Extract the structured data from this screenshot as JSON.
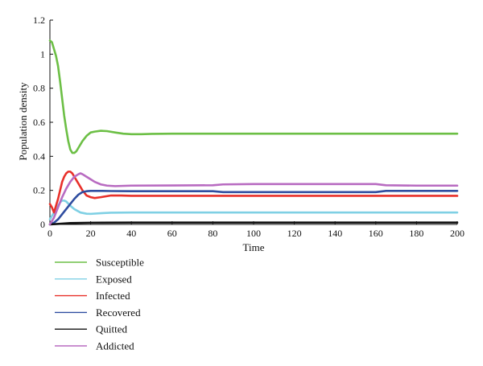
{
  "chart_data": {
    "type": "line",
    "title": "",
    "xlabel": "Time",
    "ylabel": "Population density",
    "xlim": [
      0,
      200
    ],
    "ylim": [
      0,
      1.2
    ],
    "x_ticks": [
      0,
      20,
      40,
      60,
      80,
      100,
      120,
      140,
      160,
      180,
      200
    ],
    "y_ticks": [
      0,
      0.2,
      0.4,
      0.6,
      0.8,
      1,
      1.2
    ],
    "x_tick_labels": [
      "0",
      "20",
      "40",
      "60",
      "80",
      "100",
      "120",
      "140",
      "160",
      "180",
      "200"
    ],
    "y_tick_labels": [
      "0",
      "0.2",
      "0.4",
      "0.6",
      "0.8",
      "1",
      "1.2"
    ],
    "grid": false,
    "legend_position": "bottom-left",
    "series": [
      {
        "name": "Susceptible",
        "color": "#6cbf45",
        "points": [
          [
            0,
            1.08
          ],
          [
            1,
            1.07
          ],
          [
            2,
            1.03
          ],
          [
            3,
            0.99
          ],
          [
            4,
            0.93
          ],
          [
            5,
            0.84
          ],
          [
            6,
            0.74
          ],
          [
            7,
            0.64
          ],
          [
            8,
            0.56
          ],
          [
            9,
            0.49
          ],
          [
            10,
            0.44
          ],
          [
            11,
            0.42
          ],
          [
            12,
            0.42
          ],
          [
            13,
            0.43
          ],
          [
            14,
            0.45
          ],
          [
            16,
            0.49
          ],
          [
            18,
            0.52
          ],
          [
            20,
            0.54
          ],
          [
            22,
            0.545
          ],
          [
            25,
            0.55
          ],
          [
            28,
            0.548
          ],
          [
            32,
            0.54
          ],
          [
            36,
            0.533
          ],
          [
            40,
            0.53
          ],
          [
            45,
            0.53
          ],
          [
            50,
            0.532
          ],
          [
            60,
            0.533
          ],
          [
            80,
            0.533
          ],
          [
            100,
            0.533
          ],
          [
            120,
            0.533
          ],
          [
            140,
            0.533
          ],
          [
            160,
            0.533
          ],
          [
            180,
            0.533
          ],
          [
            200,
            0.533
          ]
        ]
      },
      {
        "name": "Exposed",
        "color": "#7fd0e4",
        "points": [
          [
            0,
            0.03
          ],
          [
            2,
            0.07
          ],
          [
            4,
            0.11
          ],
          [
            5,
            0.13
          ],
          [
            6,
            0.14
          ],
          [
            7,
            0.14
          ],
          [
            8,
            0.135
          ],
          [
            10,
            0.11
          ],
          [
            12,
            0.09
          ],
          [
            15,
            0.07
          ],
          [
            18,
            0.063
          ],
          [
            20,
            0.062
          ],
          [
            25,
            0.066
          ],
          [
            30,
            0.069
          ],
          [
            40,
            0.07
          ],
          [
            60,
            0.07
          ],
          [
            80,
            0.07
          ],
          [
            100,
            0.07
          ],
          [
            120,
            0.07
          ],
          [
            140,
            0.07
          ],
          [
            160,
            0.07
          ],
          [
            180,
            0.07
          ],
          [
            200,
            0.07
          ]
        ]
      },
      {
        "name": "Infected",
        "color": "#e8302a",
        "points": [
          [
            0,
            0.12
          ],
          [
            1,
            0.1
          ],
          [
            2,
            0.07
          ],
          [
            3,
            0.11
          ],
          [
            4,
            0.15
          ],
          [
            5,
            0.2
          ],
          [
            6,
            0.25
          ],
          [
            7,
            0.28
          ],
          [
            8,
            0.3
          ],
          [
            9,
            0.31
          ],
          [
            10,
            0.31
          ],
          [
            11,
            0.3
          ],
          [
            12,
            0.28
          ],
          [
            14,
            0.24
          ],
          [
            16,
            0.2
          ],
          [
            18,
            0.17
          ],
          [
            20,
            0.16
          ],
          [
            22,
            0.155
          ],
          [
            25,
            0.16
          ],
          [
            30,
            0.17
          ],
          [
            35,
            0.17
          ],
          [
            40,
            0.168
          ],
          [
            60,
            0.168
          ],
          [
            80,
            0.168
          ],
          [
            100,
            0.168
          ],
          [
            120,
            0.168
          ],
          [
            140,
            0.168
          ],
          [
            160,
            0.168
          ],
          [
            180,
            0.168
          ],
          [
            200,
            0.168
          ]
        ]
      },
      {
        "name": "Recovered",
        "color": "#2f4da0",
        "points": [
          [
            0,
            0.0
          ],
          [
            2,
            0.01
          ],
          [
            4,
            0.03
          ],
          [
            6,
            0.06
          ],
          [
            8,
            0.09
          ],
          [
            10,
            0.12
          ],
          [
            12,
            0.15
          ],
          [
            14,
            0.175
          ],
          [
            16,
            0.19
          ],
          [
            18,
            0.195
          ],
          [
            20,
            0.197
          ],
          [
            25,
            0.197
          ],
          [
            30,
            0.196
          ],
          [
            40,
            0.195
          ],
          [
            60,
            0.195
          ],
          [
            80,
            0.195
          ],
          [
            85,
            0.19
          ],
          [
            100,
            0.19
          ],
          [
            120,
            0.19
          ],
          [
            140,
            0.19
          ],
          [
            160,
            0.19
          ],
          [
            165,
            0.197
          ],
          [
            180,
            0.197
          ],
          [
            200,
            0.197
          ]
        ]
      },
      {
        "name": "Quitted",
        "color": "#111111",
        "points": [
          [
            0,
            0.0
          ],
          [
            5,
            0.004
          ],
          [
            10,
            0.008
          ],
          [
            20,
            0.01
          ],
          [
            40,
            0.011
          ],
          [
            60,
            0.011
          ],
          [
            80,
            0.011
          ],
          [
            100,
            0.011
          ],
          [
            120,
            0.011
          ],
          [
            140,
            0.011
          ],
          [
            160,
            0.011
          ],
          [
            180,
            0.011
          ],
          [
            200,
            0.011
          ]
        ]
      },
      {
        "name": "Addicted",
        "color": "#b86bc1",
        "points": [
          [
            0,
            0.0
          ],
          [
            2,
            0.04
          ],
          [
            4,
            0.1
          ],
          [
            6,
            0.16
          ],
          [
            8,
            0.21
          ],
          [
            10,
            0.25
          ],
          [
            12,
            0.28
          ],
          [
            14,
            0.295
          ],
          [
            15,
            0.3
          ],
          [
            16,
            0.295
          ],
          [
            18,
            0.28
          ],
          [
            20,
            0.265
          ],
          [
            22,
            0.25
          ],
          [
            25,
            0.235
          ],
          [
            28,
            0.228
          ],
          [
            32,
            0.225
          ],
          [
            40,
            0.228
          ],
          [
            60,
            0.229
          ],
          [
            80,
            0.23
          ],
          [
            85,
            0.235
          ],
          [
            100,
            0.237
          ],
          [
            120,
            0.237
          ],
          [
            140,
            0.237
          ],
          [
            160,
            0.237
          ],
          [
            165,
            0.23
          ],
          [
            180,
            0.228
          ],
          [
            200,
            0.228
          ]
        ]
      }
    ]
  }
}
